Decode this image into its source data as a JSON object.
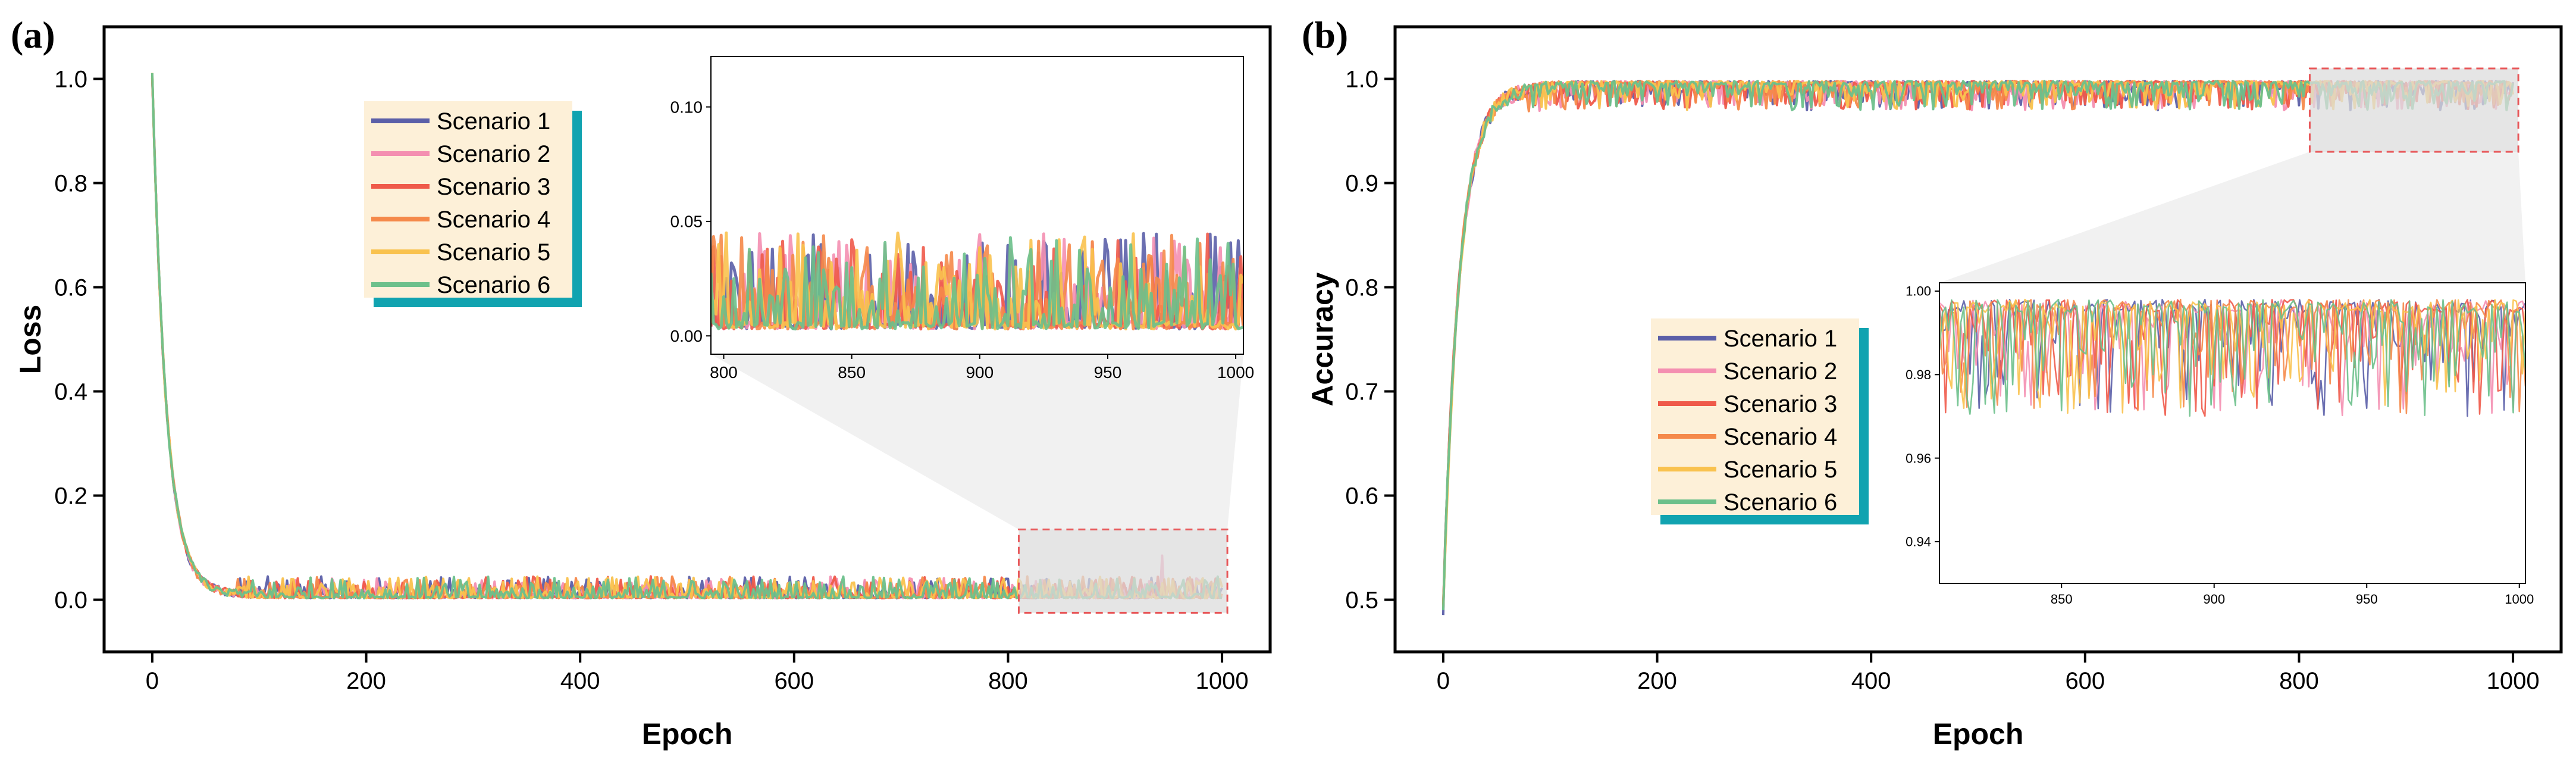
{
  "chart_data": [
    {
      "panel": "(a)",
      "type": "line",
      "xlabel": "Epoch",
      "ylabel": "Loss",
      "xlim": [
        -45,
        1045
      ],
      "ylim": [
        -0.1,
        1.1
      ],
      "x_ticks": [
        0,
        200,
        400,
        600,
        800,
        1000
      ],
      "y_ticks": [
        0.0,
        0.2,
        0.4,
        0.6,
        0.8,
        1.0
      ],
      "x_tick_labels": [
        "0",
        "200",
        "400",
        "600",
        "800",
        "1000"
      ],
      "y_tick_labels": [
        "0.0",
        "0.2",
        "0.4",
        "0.6",
        "0.8",
        "1.0"
      ],
      "curve": {
        "start": 1.0,
        "end": 0.003,
        "decay_epochs": 13,
        "noise_max": 0.03
      },
      "series": [
        {
          "name": "Scenario 1",
          "color": "#5b5fa8"
        },
        {
          "name": "Scenario 2",
          "color": "#f48fb1"
        },
        {
          "name": "Scenario 3",
          "color": "#ef5a4a"
        },
        {
          "name": "Scenario 4",
          "color": "#f5894a"
        },
        {
          "name": "Scenario 5",
          "color": "#f9c24e"
        },
        {
          "name": "Scenario 6",
          "color": "#6cc08b"
        }
      ],
      "legend_location": "upper-left",
      "zoom_region": {
        "x": [
          810,
          1005
        ],
        "y": [
          -0.025,
          0.135
        ]
      },
      "inset": {
        "location": "upper-right",
        "xlim": [
          795,
          1003
        ],
        "ylim": [
          -0.008,
          0.122
        ],
        "x_ticks": [
          800,
          850,
          900,
          950,
          1000
        ],
        "y_ticks": [
          0.0,
          0.05,
          0.1
        ],
        "x_tick_labels": [
          "800",
          "850",
          "900",
          "950",
          "1000"
        ],
        "y_tick_labels": [
          "0.00",
          "0.05",
          "0.10"
        ]
      },
      "grid": false
    },
    {
      "panel": "(b)",
      "type": "line",
      "xlabel": "Epoch",
      "ylabel": "Accuracy",
      "xlim": [
        -45,
        1045
      ],
      "ylim": [
        0.45,
        1.05
      ],
      "x_ticks": [
        0,
        200,
        400,
        600,
        800,
        1000
      ],
      "y_ticks": [
        0.5,
        0.6,
        0.7,
        0.8,
        0.9,
        1.0
      ],
      "x_tick_labels": [
        "0",
        "200",
        "400",
        "600",
        "800",
        "1000"
      ],
      "y_tick_labels": [
        "0.5",
        "0.6",
        "0.7",
        "0.8",
        "0.9",
        "1.0"
      ],
      "curve": {
        "start": 0.5,
        "end": 0.998,
        "decay_epochs": 15,
        "noise_max": 0.02
      },
      "series": [
        {
          "name": "Scenario 1",
          "color": "#5b5fa8"
        },
        {
          "name": "Scenario 2",
          "color": "#f48fb1"
        },
        {
          "name": "Scenario 3",
          "color": "#ef5a4a"
        },
        {
          "name": "Scenario 4",
          "color": "#f5894a"
        },
        {
          "name": "Scenario 5",
          "color": "#f9c24e"
        },
        {
          "name": "Scenario 6",
          "color": "#6cc08b"
        }
      ],
      "legend_location": "center",
      "zoom_region": {
        "x": [
          810,
          1005
        ],
        "y": [
          0.93,
          1.01
        ]
      },
      "inset": {
        "location": "lower-right",
        "xlim": [
          810,
          1002
        ],
        "ylim": [
          0.93,
          1.002
        ],
        "x_ticks": [
          850,
          900,
          950,
          1000
        ],
        "y_ticks": [
          0.94,
          0.96,
          0.98,
          1.0
        ],
        "x_tick_labels": [
          "850",
          "900",
          "950",
          "1000"
        ],
        "y_tick_labels": [
          "0.94",
          "0.96",
          "0.98",
          "1.00"
        ]
      },
      "grid": false
    }
  ],
  "colors": {
    "legend_bg": "#fdf0d8",
    "legend_shadow": "#11a3b0",
    "zoom_fill": "#dcdcdc",
    "zoom_border": "#e8585a",
    "connector_fill": "#efefef"
  }
}
